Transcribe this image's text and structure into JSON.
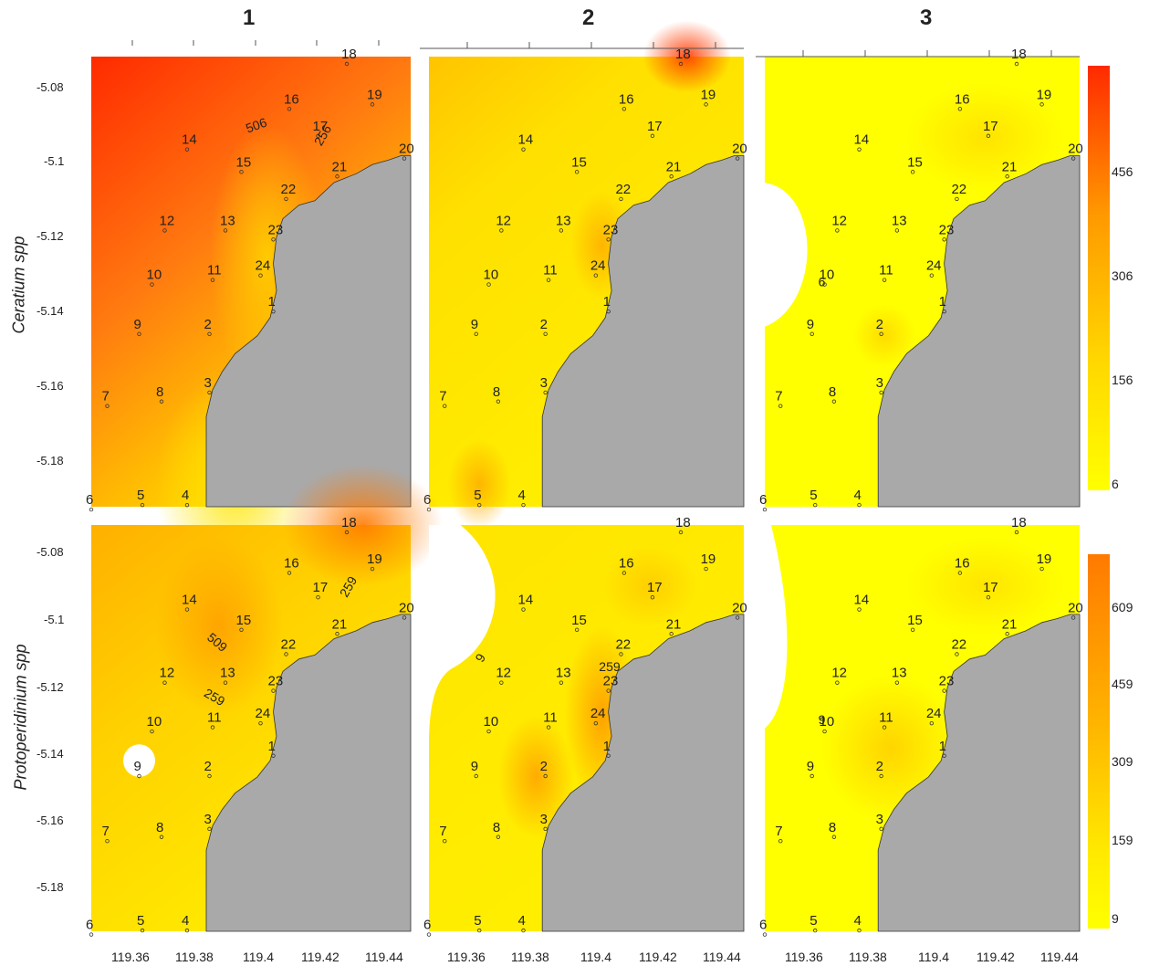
{
  "column_titles": [
    "1",
    "2",
    "3"
  ],
  "row_labels": [
    "Ceratium spp",
    "Protoperidinium spp"
  ],
  "y_ticks": [
    "-5.08",
    "-5.1",
    "-5.12",
    "-5.14",
    "-5.16",
    "-5.18"
  ],
  "x_ticks": [
    "119.36",
    "119.38",
    "119.4",
    "119.42",
    "119.44"
  ],
  "colorbars": [
    {
      "labels": [
        "456",
        "306",
        "156",
        "6"
      ],
      "color_top": "#ff2a00",
      "color_bottom": "#ffff00"
    },
    {
      "labels": [
        "609",
        "459",
        "309",
        "159",
        "9"
      ],
      "color_top": "#ff7a00",
      "color_bottom": "#ffff00"
    }
  ],
  "colors": {
    "land": "#a9a9a9",
    "low": "#ffff00",
    "high": "#ff3300"
  },
  "stations": [
    "1",
    "2",
    "3",
    "4",
    "5",
    "6",
    "7",
    "8",
    "9",
    "10",
    "11",
    "12",
    "13",
    "14",
    "15",
    "16",
    "17",
    "18",
    "19",
    "20",
    "21",
    "22",
    "23",
    "24"
  ],
  "contour_labels": {
    "top_1": [
      "506",
      "256"
    ],
    "bottom_1": [
      "509",
      "259",
      "259"
    ],
    "bottom_2": [
      "9",
      "259"
    ],
    "bottom_3": [
      "9"
    ],
    "top_3": [
      "6"
    ]
  }
}
